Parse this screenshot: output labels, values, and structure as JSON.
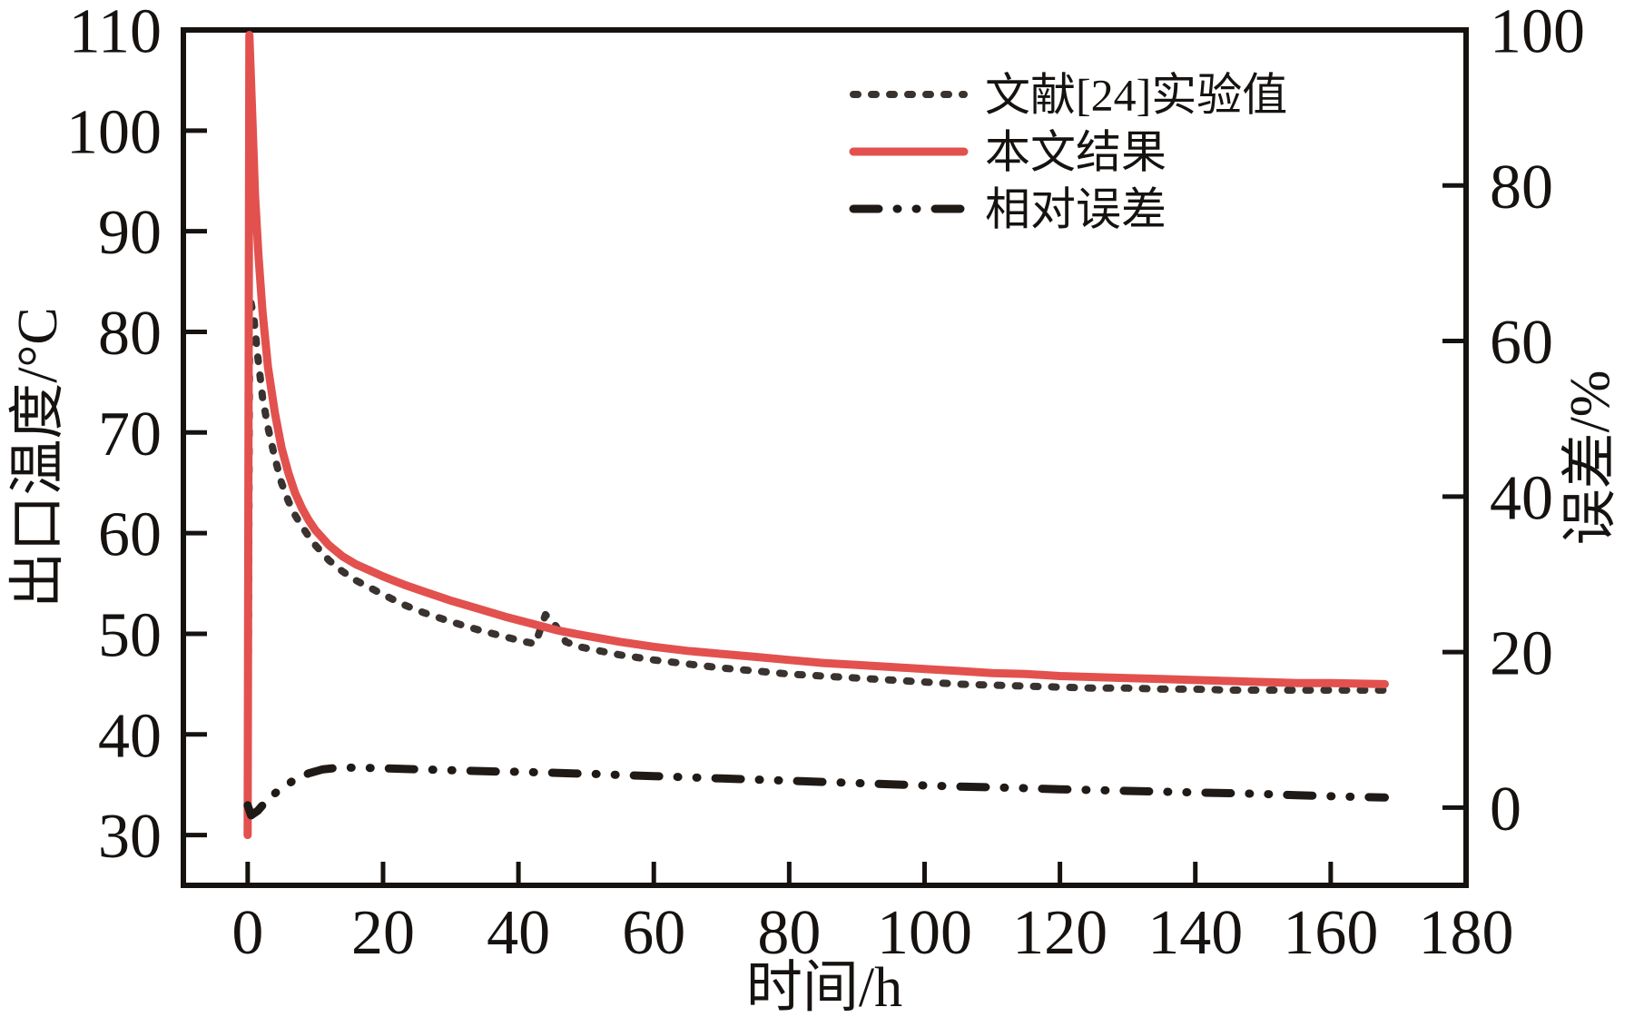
{
  "figure": {
    "background": "#ffffff",
    "axis_color": "#151210"
  },
  "chart_data": {
    "type": "line",
    "title": "",
    "xlabel": "时间/h",
    "ylabel_left": "出口温度/°C",
    "ylabel_right": "误差/%",
    "x_range": [
      -9.5,
      180
    ],
    "y_left_range": [
      25,
      110
    ],
    "y_right_range": [
      -10,
      100
    ],
    "x_ticks": [
      0,
      20,
      40,
      60,
      80,
      100,
      120,
      140,
      160,
      180
    ],
    "y_left_ticks": [
      30,
      40,
      50,
      60,
      70,
      80,
      90,
      100,
      110
    ],
    "y_right_ticks": [
      0,
      20,
      40,
      60,
      80,
      100
    ],
    "grid": false,
    "legend_position": "top-right-inside",
    "series": [
      {
        "key": "experimental",
        "name": "文献[24]实验值",
        "axis": "left",
        "style": "dotted",
        "color": "#3a322f",
        "width": 8,
        "dash": "5 15",
        "linecap": "round",
        "points": [
          [
            0,
            30
          ],
          [
            0.3,
            83.5
          ],
          [
            0.9,
            81.5
          ],
          [
            1.5,
            77.5
          ],
          [
            2.2,
            73.5
          ],
          [
            3,
            70.5
          ],
          [
            4,
            67.5
          ],
          [
            5,
            65
          ],
          [
            6,
            63.2
          ],
          [
            7,
            61.8
          ],
          [
            8,
            60.7
          ],
          [
            9,
            59.7
          ],
          [
            10,
            58.8
          ],
          [
            12,
            57.3
          ],
          [
            14,
            56.2
          ],
          [
            16,
            55.3
          ],
          [
            18,
            54.6
          ],
          [
            20,
            53.9
          ],
          [
            23,
            52.9
          ],
          [
            26,
            52.1
          ],
          [
            30,
            51.2
          ],
          [
            34,
            50.4
          ],
          [
            38,
            49.7
          ],
          [
            41,
            49.2
          ],
          [
            42.5,
            49
          ],
          [
            44,
            51.9
          ],
          [
            45.5,
            50.8
          ],
          [
            47,
            49.2
          ],
          [
            49,
            48.7
          ],
          [
            52,
            48.3
          ],
          [
            55,
            47.9
          ],
          [
            60,
            47.4
          ],
          [
            65,
            47
          ],
          [
            70,
            46.6
          ],
          [
            75,
            46.3
          ],
          [
            80,
            46
          ],
          [
            85,
            45.8
          ],
          [
            90,
            45.6
          ],
          [
            95,
            45.4
          ],
          [
            100,
            45.2
          ],
          [
            105,
            45
          ],
          [
            110,
            44.9
          ],
          [
            115,
            44.8
          ],
          [
            120,
            44.7
          ],
          [
            125,
            44.6
          ],
          [
            130,
            44.6
          ],
          [
            135,
            44.5
          ],
          [
            140,
            44.5
          ],
          [
            145,
            44.4
          ],
          [
            150,
            44.4
          ],
          [
            155,
            44.4
          ],
          [
            160,
            44.4
          ],
          [
            168,
            44.4
          ]
        ]
      },
      {
        "key": "model_result",
        "name": "本文结果",
        "axis": "left",
        "style": "solid",
        "color": "#e2514e",
        "width": 9,
        "dash": "",
        "linecap": "round",
        "points": [
          [
            0,
            30
          ],
          [
            0.25,
            109.5
          ],
          [
            0.7,
            101
          ],
          [
            1.1,
            93.5
          ],
          [
            1.6,
            87.5
          ],
          [
            2.2,
            82
          ],
          [
            3,
            76.5
          ],
          [
            4,
            72
          ],
          [
            5,
            68.5
          ],
          [
            6,
            66
          ],
          [
            7,
            64
          ],
          [
            8,
            62.5
          ],
          [
            9,
            61.3
          ],
          [
            10,
            60.3
          ],
          [
            12,
            58.8
          ],
          [
            14,
            57.7
          ],
          [
            16,
            56.9
          ],
          [
            18,
            56.3
          ],
          [
            20,
            55.7
          ],
          [
            23,
            54.9
          ],
          [
            26,
            54.2
          ],
          [
            30,
            53.3
          ],
          [
            34,
            52.5
          ],
          [
            38,
            51.7
          ],
          [
            42,
            51
          ],
          [
            46,
            50.3
          ],
          [
            50,
            49.8
          ],
          [
            55,
            49.2
          ],
          [
            60,
            48.7
          ],
          [
            65,
            48.3
          ],
          [
            70,
            48
          ],
          [
            75,
            47.7
          ],
          [
            80,
            47.4
          ],
          [
            85,
            47.1
          ],
          [
            90,
            46.9
          ],
          [
            95,
            46.7
          ],
          [
            100,
            46.5
          ],
          [
            105,
            46.3
          ],
          [
            110,
            46.1
          ],
          [
            115,
            46
          ],
          [
            120,
            45.8
          ],
          [
            125,
            45.7
          ],
          [
            130,
            45.6
          ],
          [
            135,
            45.5
          ],
          [
            140,
            45.4
          ],
          [
            145,
            45.3
          ],
          [
            150,
            45.2
          ],
          [
            155,
            45.1
          ],
          [
            160,
            45.1
          ],
          [
            168,
            45
          ]
        ]
      },
      {
        "key": "relative_error",
        "name": "相对误差",
        "axis": "right",
        "style": "dashdotdot",
        "color": "#201a17",
        "width": 9,
        "dash": "28 20 1 20 1 20",
        "linecap": "round",
        "points": [
          [
            0,
            0.3
          ],
          [
            0.5,
            -1
          ],
          [
            1.5,
            -0.4
          ],
          [
            3,
            1.1
          ],
          [
            5,
            2.5
          ],
          [
            7,
            3.6
          ],
          [
            9,
            4.4
          ],
          [
            11,
            4.9
          ],
          [
            13,
            5.1
          ],
          [
            16,
            5.15
          ],
          [
            20,
            5.05
          ],
          [
            24,
            4.95
          ],
          [
            28,
            4.85
          ],
          [
            32,
            4.75
          ],
          [
            36,
            4.65
          ],
          [
            40,
            4.6
          ],
          [
            44,
            4.5
          ],
          [
            48,
            4.4
          ],
          [
            52,
            4.3
          ],
          [
            56,
            4.15
          ],
          [
            60,
            4.05
          ],
          [
            65,
            3.9
          ],
          [
            70,
            3.75
          ],
          [
            75,
            3.6
          ],
          [
            80,
            3.45
          ],
          [
            85,
            3.3
          ],
          [
            90,
            3.15
          ],
          [
            95,
            3
          ],
          [
            100,
            2.85
          ],
          [
            105,
            2.7
          ],
          [
            110,
            2.6
          ],
          [
            115,
            2.5
          ],
          [
            120,
            2.35
          ],
          [
            125,
            2.25
          ],
          [
            130,
            2.15
          ],
          [
            135,
            2.05
          ],
          [
            140,
            1.95
          ],
          [
            145,
            1.85
          ],
          [
            150,
            1.75
          ],
          [
            155,
            1.6
          ],
          [
            160,
            1.45
          ],
          [
            168,
            1.3
          ]
        ]
      }
    ]
  }
}
